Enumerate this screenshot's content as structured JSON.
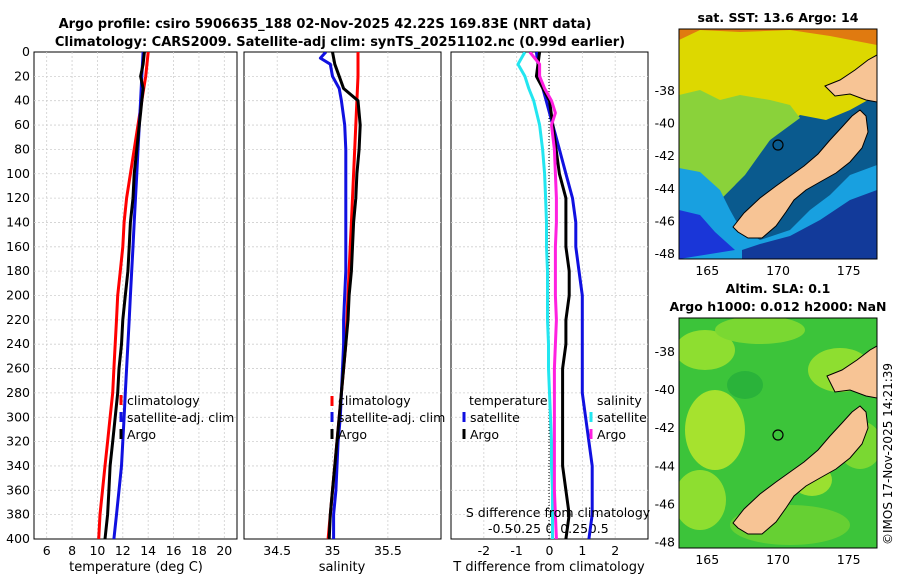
{
  "title": {
    "line1": "Argo profile: csiro 5906635_188 02-Nov-2025 42.22S 169.83E (NRT data)",
    "line2": "Climatology: CARS2009. Satellite-adj clim: synTS_20251102.nc (0.99d earlier)"
  },
  "colors": {
    "climatology": "#ff0000",
    "satellite": "#1010e0",
    "argo": "#000000",
    "sal_sat": "#22e6f0",
    "sal_argo": "#ff20e0"
  },
  "chart_data": [
    {
      "type": "line",
      "name": "temperature",
      "xlabel": "temperature (deg C)",
      "xlim": [
        5,
        21
      ],
      "xticks": [
        6,
        8,
        10,
        12,
        14,
        16,
        18,
        20
      ],
      "ylim": [
        0,
        400
      ],
      "yticks": [
        0,
        20,
        40,
        60,
        80,
        100,
        120,
        140,
        160,
        180,
        200,
        220,
        240,
        260,
        280,
        300,
        320,
        340,
        360,
        380,
        400
      ],
      "grid": true,
      "legend": [
        "climatology",
        "satellite-adj. clim",
        "Argo"
      ],
      "series": [
        {
          "name": "climatology",
          "color": "#ff0000",
          "depth": [
            0,
            20,
            40,
            60,
            80,
            100,
            120,
            140,
            160,
            180,
            200,
            220,
            240,
            260,
            280,
            300,
            320,
            340,
            360,
            380,
            400
          ],
          "values": [
            14.0,
            13.8,
            13.5,
            13.2,
            12.9,
            12.6,
            12.3,
            12.1,
            12.0,
            11.8,
            11.6,
            11.5,
            11.4,
            11.3,
            11.2,
            11.0,
            10.8,
            10.6,
            10.4,
            10.2,
            10.1
          ]
        },
        {
          "name": "satellite-adj. clim",
          "color": "#1010e0",
          "depth": [
            0,
            20,
            40,
            60,
            80,
            100,
            120,
            140,
            160,
            180,
            200,
            220,
            240,
            260,
            280,
            300,
            320,
            340,
            360,
            380,
            400
          ],
          "values": [
            13.6,
            13.5,
            13.4,
            13.3,
            13.2,
            13.1,
            13.0,
            12.9,
            12.8,
            12.7,
            12.6,
            12.5,
            12.4,
            12.3,
            12.2,
            12.1,
            12.0,
            11.9,
            11.7,
            11.5,
            11.3
          ]
        },
        {
          "name": "Argo",
          "color": "#000000",
          "depth": [
            0,
            10,
            20,
            30,
            40,
            50,
            60,
            80,
            100,
            120,
            140,
            160,
            180,
            200,
            220,
            240,
            260,
            280,
            300,
            320,
            340,
            360,
            380,
            400
          ],
          "values": [
            13.7,
            13.6,
            13.4,
            13.6,
            13.5,
            13.4,
            13.3,
            13.1,
            12.9,
            12.8,
            12.6,
            12.5,
            12.4,
            12.2,
            12.0,
            11.9,
            11.7,
            11.6,
            11.4,
            11.2,
            11.0,
            10.9,
            10.8,
            10.6
          ]
        }
      ]
    },
    {
      "type": "line",
      "name": "salinity",
      "xlabel": "salinity",
      "xlim": [
        34.2,
        35.98
      ],
      "xticks": [
        34.5,
        35,
        35.5
      ],
      "xticklabels": [
        "34.5",
        "35",
        "35.5"
      ],
      "ylim": [
        0,
        400
      ],
      "grid": true,
      "legend": [
        "climatology",
        "satellite-adj. clim",
        "Argo"
      ],
      "series": [
        {
          "name": "climatology",
          "color": "#ff0000",
          "depth": [
            0,
            20,
            40,
            60,
            80,
            100,
            120,
            140,
            160,
            180,
            200,
            220,
            240,
            260,
            280,
            300,
            320,
            340,
            360,
            380,
            400
          ],
          "values": [
            35.23,
            35.23,
            35.22,
            35.21,
            35.2,
            35.19,
            35.18,
            35.17,
            35.16,
            35.15,
            35.14,
            35.13,
            35.12,
            35.1,
            35.08,
            35.06,
            35.04,
            35.02,
            35.0,
            34.98,
            34.96
          ]
        },
        {
          "name": "satellite-adj. clim",
          "color": "#1010e0",
          "depth": [
            0,
            5,
            10,
            20,
            30,
            40,
            60,
            80,
            100,
            120,
            140,
            160,
            180,
            200,
            220,
            240,
            260,
            280,
            300,
            320,
            340,
            360,
            380,
            400
          ],
          "values": [
            34.94,
            34.89,
            34.98,
            35.0,
            35.06,
            35.08,
            35.11,
            35.12,
            35.12,
            35.12,
            35.12,
            35.12,
            35.12,
            35.11,
            35.1,
            35.1,
            35.09,
            35.08,
            35.07,
            35.05,
            35.04,
            35.03,
            35.01,
            35.01
          ]
        },
        {
          "name": "Argo",
          "color": "#000000",
          "depth": [
            0,
            10,
            20,
            30,
            40,
            50,
            60,
            80,
            100,
            120,
            140,
            160,
            180,
            200,
            220,
            240,
            260,
            280,
            300,
            320,
            340,
            360,
            380,
            400
          ],
          "values": [
            35.0,
            35.02,
            35.06,
            35.1,
            35.23,
            35.24,
            35.25,
            35.24,
            35.22,
            35.21,
            35.19,
            35.18,
            35.17,
            35.15,
            35.14,
            35.12,
            35.1,
            35.08,
            35.06,
            35.04,
            35.02,
            35.0,
            34.98,
            34.97
          ]
        }
      ]
    },
    {
      "type": "line",
      "name": "difference from climatology",
      "xlabel": "T difference from climatology",
      "xlabel_top": "S difference from climatology",
      "xlim": [
        -3,
        3
      ],
      "xticks": [
        -2,
        -1,
        0,
        1,
        2
      ],
      "xticks_S": [
        -0.5,
        -0.25,
        0,
        0.25,
        0.5
      ],
      "xticklabels_S": [
        "-0.5",
        "-0.25",
        "0",
        "0.25",
        "0.5"
      ],
      "ylim": [
        0,
        400
      ],
      "grid": true,
      "legend_temperature": [
        "temperature",
        "satellite",
        "Argo"
      ],
      "legend_salinity": [
        "salinity",
        "satellite",
        "Argo"
      ],
      "series": [
        {
          "name": "T satellite",
          "color": "#1010e0",
          "depth": [
            0,
            20,
            40,
            60,
            80,
            100,
            120,
            140,
            160,
            180,
            200,
            220,
            240,
            260,
            280,
            300,
            320,
            340,
            360,
            380,
            400
          ],
          "values": [
            -0.4,
            -0.3,
            -0.1,
            0.1,
            0.3,
            0.5,
            0.7,
            0.8,
            0.8,
            0.9,
            1.0,
            1.0,
            1.0,
            1.0,
            1.0,
            1.1,
            1.2,
            1.3,
            1.3,
            1.3,
            1.2
          ]
        },
        {
          "name": "T Argo",
          "color": "#000000",
          "depth": [
            0,
            20,
            40,
            60,
            80,
            100,
            120,
            140,
            160,
            180,
            200,
            220,
            240,
            260,
            280,
            300,
            320,
            340,
            360,
            380,
            400
          ],
          "values": [
            -0.3,
            -0.4,
            0.0,
            0.1,
            0.2,
            0.3,
            0.5,
            0.5,
            0.5,
            0.6,
            0.6,
            0.5,
            0.5,
            0.4,
            0.4,
            0.4,
            0.4,
            0.4,
            0.5,
            0.6,
            0.5
          ]
        },
        {
          "name": "S satellite",
          "color": "#22e6f0",
          "depth": [
            0,
            10,
            20,
            30,
            40,
            60,
            80,
            100,
            120,
            140,
            160,
            180,
            200,
            220,
            240,
            260,
            280,
            300,
            320,
            340,
            360,
            380,
            400
          ],
          "values": [
            -0.25,
            -0.32,
            -0.25,
            -0.21,
            -0.16,
            -0.1,
            -0.07,
            -0.05,
            -0.04,
            -0.03,
            -0.03,
            -0.02,
            -0.02,
            -0.02,
            -0.01,
            -0.01,
            0.0,
            0.01,
            0.02,
            0.02,
            0.03,
            0.03,
            0.03
          ]
        },
        {
          "name": "S Argo",
          "color": "#ff20e0",
          "depth": [
            0,
            10,
            20,
            30,
            40,
            50,
            60,
            80,
            100,
            120,
            140,
            160,
            180,
            200,
            220,
            240,
            260,
            280,
            300,
            320,
            340,
            360,
            380,
            400
          ],
          "values": [
            -0.2,
            -0.1,
            -0.1,
            -0.05,
            0.02,
            0.06,
            0.02,
            0.05,
            0.06,
            0.07,
            0.07,
            0.06,
            0.06,
            0.06,
            0.07,
            0.06,
            0.05,
            0.05,
            0.05,
            0.05,
            0.05,
            0.05,
            0.06,
            0.07
          ]
        }
      ]
    },
    {
      "type": "heatmap",
      "name": "sst map",
      "title": "sat. SST: 13.6 Argo: 14",
      "xlim": [
        163,
        177
      ],
      "xticks": [
        165,
        170,
        175
      ],
      "ylim": [
        -48.3,
        -34.2
      ],
      "yticks": [
        -38,
        -40,
        -42,
        -44,
        -46,
        -48
      ]
    },
    {
      "type": "heatmap",
      "name": "sla map",
      "title_line1": "Altim. SLA: 0.1",
      "title_line2": "Argo h1000: 0.012 h2000: NaN",
      "xlim": [
        163,
        177
      ],
      "xticks": [
        165,
        170,
        175
      ],
      "ylim": [
        -48.3,
        -36.2
      ],
      "yticks": [
        -38,
        -40,
        -42,
        -44,
        -46,
        -48
      ]
    }
  ],
  "credit": "©IMOS 17-Nov-2025 14:21:39"
}
